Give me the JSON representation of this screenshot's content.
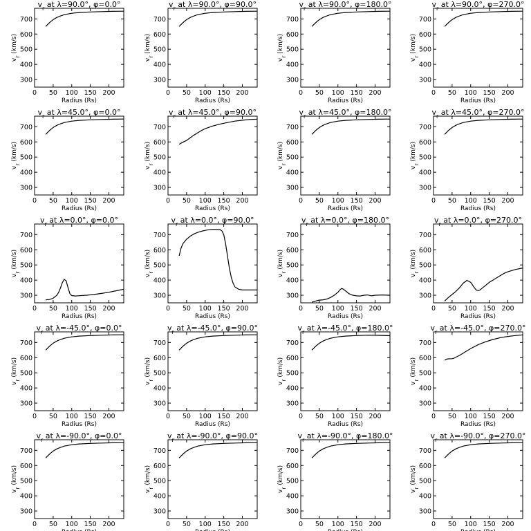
{
  "chart_data": [
    {
      "type": "line",
      "title": "v_r at λ=90.0°, φ=0.0°",
      "xlabel": "Radius (Rs)",
      "ylabel": "v_r (km/s)",
      "xlim": [
        0,
        240
      ],
      "ylim": [
        250,
        770
      ],
      "x_ticks": [
        0,
        50,
        100,
        150,
        200
      ],
      "y_ticks": [
        300,
        400,
        500,
        600,
        700
      ],
      "x": [
        30,
        40,
        50,
        60,
        70,
        80,
        100,
        120,
        150,
        180,
        210,
        240
      ],
      "y": [
        650,
        675,
        695,
        710,
        720,
        728,
        737,
        742,
        746,
        748,
        750,
        751
      ]
    },
    {
      "type": "line",
      "title": "v_r at λ=90.0°, φ=90.0°",
      "xlabel": "Radius (Rs)",
      "ylabel": "v_r (km/s)",
      "xlim": [
        0,
        240
      ],
      "ylim": [
        250,
        770
      ],
      "x_ticks": [
        0,
        50,
        100,
        150,
        200
      ],
      "y_ticks": [
        300,
        400,
        500,
        600,
        700
      ],
      "x": [
        30,
        40,
        50,
        60,
        70,
        80,
        100,
        120,
        150,
        180,
        210,
        240
      ],
      "y": [
        650,
        675,
        695,
        710,
        720,
        728,
        737,
        742,
        746,
        748,
        750,
        751
      ]
    },
    {
      "type": "line",
      "title": "v_r at λ=90.0°, φ=180.0°",
      "xlabel": "Radius (Rs)",
      "ylabel": "v_r (km/s)",
      "xlim": [
        0,
        240
      ],
      "ylim": [
        250,
        770
      ],
      "x_ticks": [
        0,
        50,
        100,
        150,
        200
      ],
      "y_ticks": [
        300,
        400,
        500,
        600,
        700
      ],
      "x": [
        30,
        40,
        50,
        60,
        70,
        80,
        100,
        120,
        150,
        180,
        210,
        240
      ],
      "y": [
        650,
        675,
        695,
        710,
        720,
        728,
        737,
        742,
        746,
        748,
        750,
        751
      ]
    },
    {
      "type": "line",
      "title": "v_r at λ=90.0°, φ=270.0°",
      "xlabel": "Radius (Rs)",
      "ylabel": "v_r (km/s)",
      "xlim": [
        0,
        240
      ],
      "ylim": [
        250,
        770
      ],
      "x_ticks": [
        0,
        50,
        100,
        150,
        200
      ],
      "y_ticks": [
        300,
        400,
        500,
        600,
        700
      ],
      "x": [
        30,
        40,
        50,
        60,
        70,
        80,
        100,
        120,
        150,
        180,
        210,
        240
      ],
      "y": [
        650,
        675,
        695,
        710,
        720,
        728,
        737,
        742,
        746,
        748,
        750,
        751
      ]
    },
    {
      "type": "line",
      "title": "v_r at λ=45.0°, φ=0.0°",
      "xlabel": "Radius (Rs)",
      "ylabel": "v_r (km/s)",
      "xlim": [
        0,
        240
      ],
      "ylim": [
        250,
        770
      ],
      "x_ticks": [
        0,
        50,
        100,
        150,
        200
      ],
      "y_ticks": [
        300,
        400,
        500,
        600,
        700
      ],
      "x": [
        30,
        40,
        50,
        60,
        70,
        80,
        100,
        120,
        150,
        180,
        210,
        240
      ],
      "y": [
        650,
        675,
        695,
        710,
        720,
        728,
        737,
        742,
        746,
        748,
        750,
        751
      ]
    },
    {
      "type": "line",
      "title": "v_r at λ=45.0°, φ=90.0°",
      "xlabel": "Radius (Rs)",
      "ylabel": "v_r (km/s)",
      "xlim": [
        0,
        240
      ],
      "ylim": [
        250,
        770
      ],
      "x_ticks": [
        0,
        50,
        100,
        150,
        200
      ],
      "y_ticks": [
        300,
        400,
        500,
        600,
        700
      ],
      "x": [
        30,
        40,
        50,
        60,
        70,
        80,
        90,
        100,
        120,
        140,
        160,
        180,
        200,
        220,
        240
      ],
      "y": [
        585,
        598,
        610,
        628,
        645,
        660,
        675,
        688,
        705,
        718,
        728,
        737,
        743,
        748,
        750
      ]
    },
    {
      "type": "line",
      "title": "v_r at λ=45.0°, φ=180.0°",
      "xlabel": "Radius (Rs)",
      "ylabel": "v_r (km/s)",
      "xlim": [
        0,
        240
      ],
      "ylim": [
        250,
        770
      ],
      "x_ticks": [
        0,
        50,
        100,
        150,
        200
      ],
      "y_ticks": [
        300,
        400,
        500,
        600,
        700
      ],
      "x": [
        30,
        40,
        50,
        60,
        70,
        80,
        100,
        120,
        150,
        180,
        210,
        240
      ],
      "y": [
        650,
        675,
        695,
        710,
        720,
        728,
        737,
        742,
        746,
        748,
        750,
        751
      ]
    },
    {
      "type": "line",
      "title": "v_r at λ=45.0°, φ=270.0°",
      "xlabel": "Radius (Rs)",
      "ylabel": "v_r (km/s)",
      "xlim": [
        0,
        240
      ],
      "ylim": [
        250,
        770
      ],
      "x_ticks": [
        0,
        50,
        100,
        150,
        200
      ],
      "y_ticks": [
        300,
        400,
        500,
        600,
        700
      ],
      "x": [
        30,
        40,
        50,
        60,
        70,
        80,
        100,
        120,
        150,
        180,
        210,
        240
      ],
      "y": [
        650,
        675,
        695,
        710,
        720,
        728,
        737,
        742,
        746,
        748,
        750,
        751
      ]
    },
    {
      "type": "line",
      "title": "v_r at λ=0.0°, φ=0.0°",
      "xlabel": "Radius (Rs)",
      "ylabel": "v_r (km/s)",
      "xlim": [
        0,
        240
      ],
      "ylim": [
        250,
        770
      ],
      "x_ticks": [
        0,
        50,
        100,
        150,
        200
      ],
      "y_ticks": [
        300,
        400,
        500,
        600,
        700
      ],
      "x": [
        30,
        40,
        50,
        60,
        65,
        70,
        75,
        80,
        85,
        90,
        95,
        100,
        110,
        120,
        140,
        160,
        180,
        200,
        220,
        240
      ],
      "y": [
        270,
        272,
        280,
        300,
        320,
        350,
        385,
        405,
        395,
        350,
        310,
        298,
        295,
        297,
        300,
        305,
        312,
        320,
        330,
        340
      ]
    },
    {
      "type": "line",
      "title": "v_r at λ=0.0°, φ=90.0°",
      "xlabel": "Radius (Rs)",
      "ylabel": "v_r (km/s)",
      "xlim": [
        0,
        240
      ],
      "ylim": [
        250,
        770
      ],
      "x_ticks": [
        0,
        50,
        100,
        150,
        200
      ],
      "y_ticks": [
        300,
        400,
        500,
        600,
        700
      ],
      "x": [
        30,
        35,
        40,
        50,
        60,
        70,
        80,
        90,
        100,
        110,
        120,
        130,
        140,
        145,
        150,
        155,
        160,
        165,
        170,
        175,
        180,
        190,
        200,
        210,
        220,
        240
      ],
      "y": [
        560,
        610,
        640,
        670,
        690,
        705,
        715,
        722,
        728,
        732,
        734,
        734,
        733,
        725,
        700,
        640,
        560,
        480,
        420,
        380,
        355,
        340,
        335,
        335,
        335,
        335
      ]
    },
    {
      "type": "line",
      "title": "v_r at λ=0.0°, φ=180.0°",
      "xlabel": "Radius (Rs)",
      "ylabel": "v_r (km/s)",
      "xlim": [
        0,
        240
      ],
      "ylim": [
        250,
        770
      ],
      "x_ticks": [
        0,
        50,
        100,
        150,
        200
      ],
      "y_ticks": [
        300,
        400,
        500,
        600,
        700
      ],
      "x": [
        30,
        40,
        50,
        60,
        70,
        80,
        90,
        100,
        105,
        110,
        115,
        120,
        130,
        140,
        150,
        160,
        170,
        180,
        190,
        200,
        220,
        240
      ],
      "y": [
        255,
        262,
        268,
        270,
        275,
        285,
        300,
        320,
        335,
        345,
        340,
        330,
        310,
        300,
        296,
        295,
        300,
        302,
        296,
        300,
        302,
        300
      ]
    },
    {
      "type": "line",
      "title": "v_r at λ=0.0°, φ=270.0°",
      "xlabel": "Radius (Rs)",
      "ylabel": "v_r (km/s)",
      "xlim": [
        0,
        240
      ],
      "ylim": [
        250,
        770
      ],
      "x_ticks": [
        0,
        50,
        100,
        150,
        200
      ],
      "y_ticks": [
        300,
        400,
        500,
        600,
        700
      ],
      "x": [
        30,
        40,
        50,
        60,
        70,
        80,
        90,
        100,
        110,
        115,
        120,
        125,
        130,
        140,
        150,
        160,
        170,
        180,
        190,
        200,
        220,
        240
      ],
      "y": [
        262,
        285,
        305,
        325,
        350,
        380,
        398,
        385,
        350,
        335,
        330,
        335,
        345,
        365,
        385,
        400,
        415,
        430,
        445,
        455,
        470,
        480
      ]
    },
    {
      "type": "line",
      "title": "v_r at λ=-45.0°, φ=0.0°",
      "xlabel": "Radius (Rs)",
      "ylabel": "v_r (km/s)",
      "xlim": [
        0,
        240
      ],
      "ylim": [
        250,
        770
      ],
      "x_ticks": [
        0,
        50,
        100,
        150,
        200
      ],
      "y_ticks": [
        300,
        400,
        500,
        600,
        700
      ],
      "x": [
        30,
        40,
        50,
        60,
        70,
        80,
        100,
        120,
        150,
        180,
        210,
        240
      ],
      "y": [
        650,
        675,
        695,
        710,
        720,
        728,
        737,
        742,
        746,
        748,
        750,
        751
      ]
    },
    {
      "type": "line",
      "title": "v_r at λ=-45.0°, φ=90.0°",
      "xlabel": "Radius (Rs)",
      "ylabel": "v_r (km/s)",
      "xlim": [
        0,
        240
      ],
      "ylim": [
        250,
        770
      ],
      "x_ticks": [
        0,
        50,
        100,
        150,
        200
      ],
      "y_ticks": [
        300,
        400,
        500,
        600,
        700
      ],
      "x": [
        30,
        40,
        50,
        60,
        70,
        80,
        100,
        120,
        150,
        180,
        210,
        240
      ],
      "y": [
        650,
        675,
        695,
        710,
        720,
        728,
        737,
        742,
        746,
        748,
        750,
        751
      ]
    },
    {
      "type": "line",
      "title": "v_r at λ=-45.0°, φ=180.0°",
      "xlabel": "Radius (Rs)",
      "ylabel": "v_r (km/s)",
      "xlim": [
        0,
        240
      ],
      "ylim": [
        250,
        770
      ],
      "x_ticks": [
        0,
        50,
        100,
        150,
        200
      ],
      "y_ticks": [
        300,
        400,
        500,
        600,
        700
      ],
      "x": [
        30,
        40,
        50,
        60,
        70,
        80,
        100,
        120,
        150,
        180,
        210,
        240
      ],
      "y": [
        650,
        675,
        695,
        710,
        720,
        728,
        737,
        742,
        746,
        748,
        747,
        745
      ]
    },
    {
      "type": "line",
      "title": "v_r at λ=-45.0°, φ=270.0°",
      "xlabel": "Radius (Rs)",
      "ylabel": "v_r (km/s)",
      "xlim": [
        0,
        240
      ],
      "ylim": [
        250,
        770
      ],
      "x_ticks": [
        0,
        50,
        100,
        150,
        200
      ],
      "y_ticks": [
        300,
        400,
        500,
        600,
        700
      ],
      "x": [
        30,
        35,
        40,
        50,
        55,
        60,
        70,
        80,
        100,
        120,
        140,
        160,
        180,
        200,
        220,
        240
      ],
      "y": [
        583,
        590,
        592,
        593,
        596,
        603,
        615,
        630,
        660,
        685,
        705,
        720,
        732,
        740,
        746,
        750
      ]
    },
    {
      "type": "line",
      "title": "v_r at λ=-90.0°, φ=0.0°",
      "xlabel": "Radius (Rs)",
      "ylabel": "v_r (km/s)",
      "xlim": [
        0,
        240
      ],
      "ylim": [
        250,
        770
      ],
      "x_ticks": [
        0,
        50,
        100,
        150,
        200
      ],
      "y_ticks": [
        300,
        400,
        500,
        600,
        700
      ],
      "x": [
        30,
        40,
        50,
        60,
        70,
        80,
        100,
        120,
        150,
        180,
        210,
        240
      ],
      "y": [
        650,
        675,
        695,
        710,
        720,
        728,
        737,
        742,
        746,
        748,
        750,
        751
      ]
    },
    {
      "type": "line",
      "title": "v_r at λ=-90.0°, φ=90.0°",
      "xlabel": "Radius (Rs)",
      "ylabel": "v_r (km/s)",
      "xlim": [
        0,
        240
      ],
      "ylim": [
        250,
        770
      ],
      "x_ticks": [
        0,
        50,
        100,
        150,
        200
      ],
      "y_ticks": [
        300,
        400,
        500,
        600,
        700
      ],
      "x": [
        30,
        40,
        50,
        60,
        70,
        80,
        100,
        120,
        150,
        180,
        210,
        240
      ],
      "y": [
        650,
        675,
        695,
        710,
        720,
        728,
        737,
        742,
        746,
        748,
        750,
        751
      ]
    },
    {
      "type": "line",
      "title": "v_r at λ=-90.0°, φ=180.0°",
      "xlabel": "Radius (Rs)",
      "ylabel": "v_r (km/s)",
      "xlim": [
        0,
        240
      ],
      "ylim": [
        250,
        770
      ],
      "x_ticks": [
        0,
        50,
        100,
        150,
        200
      ],
      "y_ticks": [
        300,
        400,
        500,
        600,
        700
      ],
      "x": [
        30,
        40,
        50,
        60,
        70,
        80,
        100,
        120,
        150,
        180,
        210,
        240
      ],
      "y": [
        650,
        675,
        695,
        710,
        720,
        728,
        737,
        742,
        746,
        748,
        750,
        751
      ]
    },
    {
      "type": "line",
      "title": "v_r at λ=-90.0°, φ=270.0°",
      "xlabel": "Radius (Rs)",
      "ylabel": "v_r (km/s)",
      "xlim": [
        0,
        240
      ],
      "ylim": [
        250,
        770
      ],
      "x_ticks": [
        0,
        50,
        100,
        150,
        200
      ],
      "y_ticks": [
        300,
        400,
        500,
        600,
        700
      ],
      "x": [
        30,
        40,
        50,
        60,
        70,
        80,
        100,
        120,
        150,
        180,
        210,
        240
      ],
      "y": [
        650,
        675,
        695,
        710,
        720,
        728,
        737,
        742,
        746,
        748,
        750,
        751
      ]
    }
  ]
}
